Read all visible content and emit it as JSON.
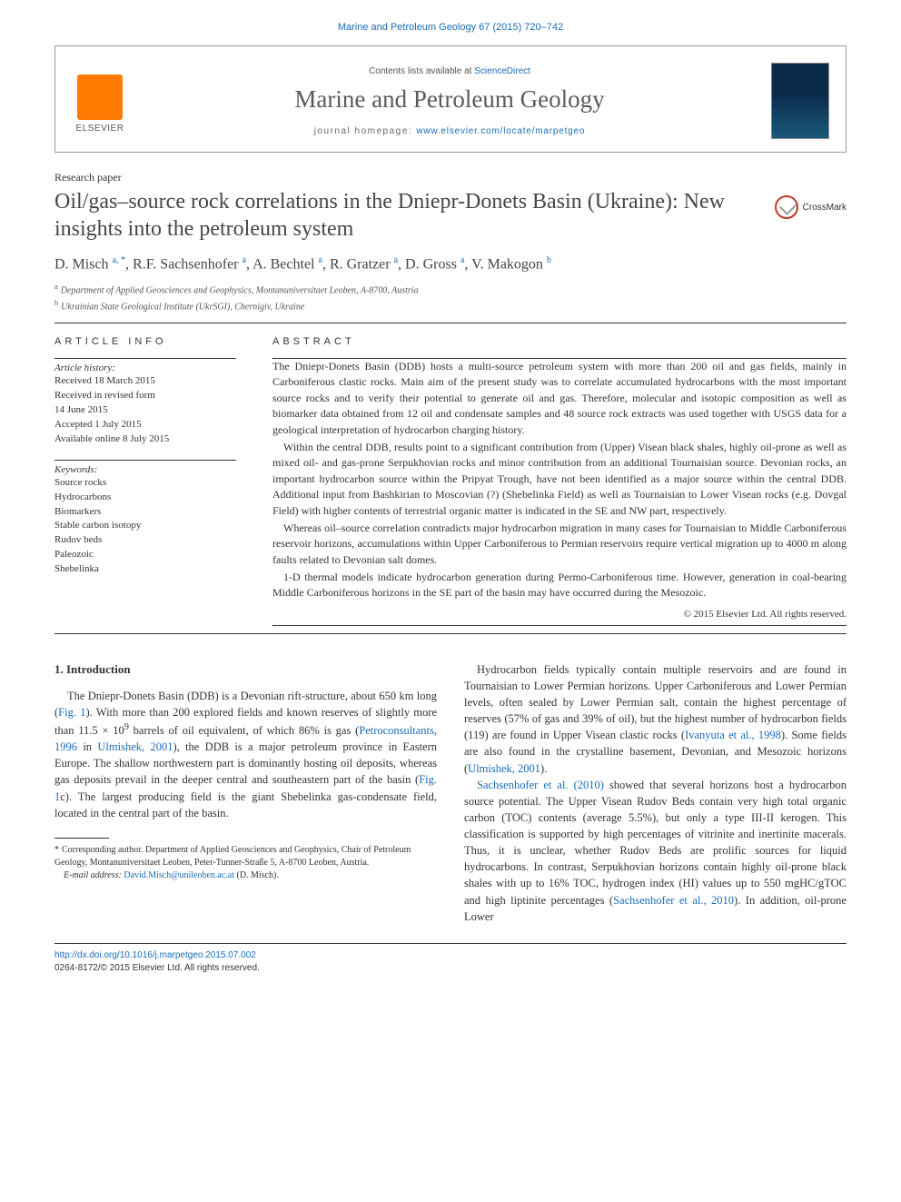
{
  "citation": "Marine and Petroleum Geology 67 (2015) 720–742",
  "header": {
    "contents_prefix": "Contents lists available at ",
    "contents_link": "ScienceDirect",
    "journal": "Marine and Petroleum Geology",
    "homepage_prefix": "journal homepage: ",
    "homepage_url": "www.elsevier.com/locate/marpetgeo",
    "publisher": "ELSEVIER"
  },
  "paper_type": "Research paper",
  "title": "Oil/gas–source rock correlations in the Dniepr-Donets Basin (Ukraine): New insights into the petroleum system",
  "crossmark": "CrossMark",
  "authors_html": "D. Misch <sup>a, *</sup>, R.F. Sachsenhofer <sup>a</sup>, A. Bechtel <sup>a</sup>, R. Gratzer <sup>a</sup>, D. Gross <sup>a</sup>, V. Makogon <sup>b</sup>",
  "affiliations": {
    "a": "Department of Applied Geosciences and Geophysics, Montanuniversitaet Leoben, A-8700, Austria",
    "b": "Ukrainian State Geological Institute (UkrSGI), Chernigiv, Ukraine"
  },
  "info_heading": "ARTICLE INFO",
  "abstract_heading": "ABSTRACT",
  "history_label": "Article history:",
  "history": [
    "Received 18 March 2015",
    "Received in revised form",
    "14 June 2015",
    "Accepted 1 July 2015",
    "Available online 8 July 2015"
  ],
  "keywords_label": "Keywords:",
  "keywords": [
    "Source rocks",
    "Hydrocarbons",
    "Biomarkers",
    "Stable carbon isotopy",
    "Rudov beds",
    "Paleozoic",
    "Shebelinka"
  ],
  "abstract": [
    "The Dniepr-Donets Basin (DDB) hosts a multi-source petroleum system with more than 200 oil and gas fields, mainly in Carboniferous clastic rocks. Main aim of the present study was to correlate accumulated hydrocarbons with the most important source rocks and to verify their potential to generate oil and gas. Therefore, molecular and isotopic composition as well as biomarker data obtained from 12 oil and condensate samples and 48 source rock extracts was used together with USGS data for a geological interpretation of hydrocarbon charging history.",
    "Within the central DDB, results point to a significant contribution from (Upper) Visean black shales, highly oil-prone as well as mixed oil- and gas-prone Serpukhovian rocks and minor contribution from an additional Tournaisian source. Devonian rocks, an important hydrocarbon source within the Pripyat Trough, have not been identified as a major source within the central DDB. Additional input from Bashkirian to Moscovian (?) (Shebelinka Field) as well as Tournaisian to Lower Visean rocks (e.g. Dovgal Field) with higher contents of terrestrial organic matter is indicated in the SE and NW part, respectively.",
    "Whereas oil–source correlation contradicts major hydrocarbon migration in many cases for Tournaisian to Middle Carboniferous reservoir horizons, accumulations within Upper Carboniferous to Permian reservoirs require vertical migration up to 4000 m along faults related to Devonian salt domes.",
    "1-D thermal models indicate hydrocarbon generation during Permo-Carboniferous time. However, generation in coal-bearing Middle Carboniferous horizons in the SE part of the basin may have occurred during the Mesozoic."
  ],
  "copyright": "© 2015 Elsevier Ltd. All rights reserved.",
  "section1": "1.  Introduction",
  "col1": {
    "p1a": "The Dniepr-Donets Basin (DDB) is a Devonian rift-structure, about 650 km long (",
    "fig1": "Fig. 1",
    "p1b": "). With more than 200 explored fields and known reserves of slightly more than 11.5 × 10",
    "sup9": "9",
    "p1c": " barrels of oil equivalent, of which 86% is gas (",
    "ref1": "Petroconsultants, 1996",
    "p1d": " in ",
    "ref2": "Ulmishek, 2001",
    "p1e": "), the DDB is a major petroleum province in Eastern Europe. The shallow northwestern part is dominantly hosting oil deposits, whereas gas deposits prevail in the deeper central and southeastern part of the basin (",
    "fig1c": "Fig. 1",
    "p1f": "c). The largest producing field is the giant Shebelinka gas-condensate field, located in the central part of the basin."
  },
  "col2": {
    "p1a": "Hydrocarbon fields typically contain multiple reservoirs and are found in Tournaisian to Lower Permian horizons. Upper Carboniferous and Lower Permian levels, often sealed by Lower Permian salt, contain the highest percentage of reserves (57% of gas and 39% of oil), but the highest number of hydrocarbon fields (119) are found in Upper Visean clastic rocks (",
    "ref1": "Ivanyuta et al., 1998",
    "p1b": "). Some fields are also found in the crystalline basement, Devonian, and Mesozoic horizons (",
    "ref2": "Ulmishek, 2001",
    "p1c": ").",
    "p2a": "Sachsenhofer et al. (2010)",
    "p2b": " showed that several horizons host a hydrocarbon source potential. The Upper Visean Rudov Beds contain very high total organic carbon (TOC) contents (average 5.5%), but only a type III-II kerogen. This classification is supported by high percentages of vitrinite and inertinite macerals. Thus, it is unclear, whether Rudov Beds are prolific sources for liquid hydrocarbons. In contrast, Serpukhovian horizons contain highly oil-prone black shales with up to 16% TOC, hydrogen index (HI) values up to 550 mgHC/gTOC and high liptinite percentages (",
    "ref3": "Sachsenhofer et al., 2010",
    "p2c": "). In addition, oil-prone Lower"
  },
  "footnote": {
    "corr": "Corresponding author. Department of Applied Geosciences and Geophysics, Chair of Petroleum Geology, Montanuniversitaet Leoben, Peter-Tunner-Straße 5, A-8700 Leoben, Austria.",
    "email_label": "E-mail address:",
    "email": "David.Misch@unileoben.ac.at",
    "email_who": "(D. Misch)."
  },
  "footer": {
    "doi": "http://dx.doi.org/10.1016/j.marpetgeo.2015.07.002",
    "issn": "0264-8172/© 2015 Elsevier Ltd. All rights reserved."
  }
}
